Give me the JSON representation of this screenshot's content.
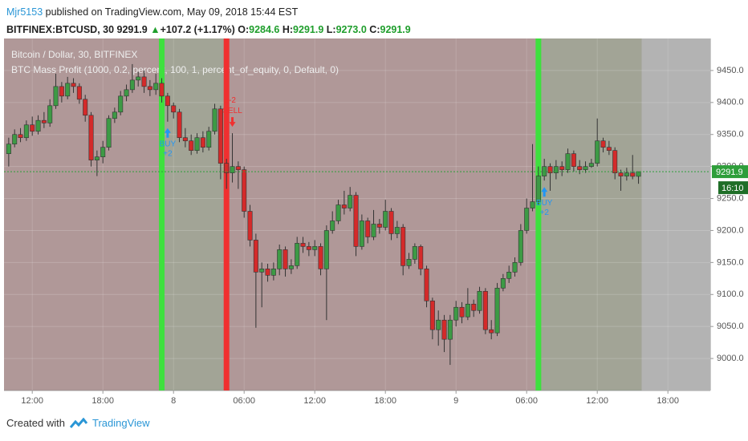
{
  "header": {
    "author": "Mjr5153",
    "published": "published on TradingView.com, May 09, 2018 15:44 EST",
    "symbol": "BITFINEX:BTCUSD, 30",
    "last": "9291.9",
    "arrow": "▲",
    "change": "+107.2 (+1.17%)",
    "o_label": "O:",
    "open": "9284.6",
    "h_label": "H:",
    "high": "9291.9",
    "l_label": "L:",
    "low": "9273.0",
    "c_label": "C:",
    "close": "9291.9"
  },
  "chart_data": {
    "type": "candlestick",
    "title": "Bitcoin / Dollar, 30, BITFINEX",
    "subtitle": "BTC Mass Profit (1000, 0.2, percent, 100, 1, percent_of_equity, 0, Default, 0)",
    "x": [
      10,
      10.5,
      11,
      11.5,
      12,
      12.5,
      13,
      13.5,
      14,
      14.5,
      15,
      15.5,
      16,
      16.5,
      17,
      17.5,
      18,
      18.5,
      19,
      19.5,
      20,
      20.5,
      21,
      21.5,
      22,
      22.5,
      23,
      23.5,
      24,
      24.5,
      25,
      25.5,
      26,
      26.5,
      27,
      27.5,
      28,
      28.5,
      29,
      29.5,
      30,
      30.5,
      31,
      31.5,
      32,
      32.5,
      33,
      33.5,
      34,
      34.5,
      35,
      35.5,
      36,
      36.5,
      37,
      37.5,
      38,
      38.5,
      39,
      39.5,
      40,
      40.5,
      41,
      41.5,
      42,
      42.5,
      43,
      43.5,
      44,
      44.5,
      45,
      45.5,
      46,
      46.5,
      47,
      47.5,
      48,
      48.5,
      49,
      49.5,
      50,
      50.5,
      51,
      51.5,
      52,
      52.5,
      53,
      53.5,
      54,
      54.5,
      55,
      55.5,
      56,
      56.5,
      57,
      57.5,
      58,
      58.5,
      59,
      59.5,
      60,
      60.5,
      61,
      61.5,
      62,
      62.5,
      63,
      63.5
    ],
    "open": [
      9320,
      9335,
      9350,
      9345,
      9365,
      9355,
      9372,
      9368,
      9395,
      9425,
      9410,
      9430,
      9425,
      9405,
      9380,
      9310,
      9315,
      9330,
      9375,
      9385,
      9410,
      9420,
      9435,
      9440,
      9425,
      9420,
      9430,
      9410,
      9395,
      9385,
      9345,
      9340,
      9325,
      9345,
      9330,
      9355,
      9390,
      9305,
      9290,
      9300,
      9295,
      9230,
      9185,
      9135,
      9140,
      9130,
      9140,
      9170,
      9140,
      9145,
      9180,
      9175,
      9170,
      9175,
      9140,
      9200,
      9215,
      9240,
      9235,
      9255,
      9175,
      9215,
      9190,
      9210,
      9205,
      9230,
      9195,
      9205,
      9145,
      9155,
      9175,
      9140,
      9090,
      9045,
      9060,
      9030,
      9060,
      9080,
      9065,
      9085,
      9075,
      9105,
      9045,
      9040,
      9110,
      9125,
      9135,
      9150,
      9200,
      9235,
      9245,
      9285,
      9300,
      9290,
      9300,
      9295,
      9320,
      9300,
      9295,
      9300,
      9305,
      9340,
      9330,
      9325,
      9290,
      9285,
      9290,
      9284.6
    ],
    "high": [
      9345,
      9358,
      9360,
      9372,
      9378,
      9380,
      9385,
      9405,
      9445,
      9432,
      9440,
      9438,
      9430,
      9412,
      9385,
      9325,
      9340,
      9380,
      9392,
      9418,
      9428,
      9460,
      9448,
      9450,
      9435,
      9445,
      9438,
      9415,
      9400,
      9390,
      9360,
      9350,
      9352,
      9355,
      9362,
      9398,
      9395,
      9312,
      9352,
      9308,
      9300,
      9240,
      9195,
      9150,
      9148,
      9150,
      9178,
      9175,
      9155,
      9190,
      9190,
      9182,
      9185,
      9180,
      9208,
      9230,
      9248,
      9262,
      9268,
      9260,
      9225,
      9220,
      9232,
      9218,
      9248,
      9235,
      9215,
      9210,
      9165,
      9180,
      9178,
      9145,
      9095,
      9075,
      9068,
      9068,
      9090,
      9088,
      9110,
      9092,
      9112,
      9110,
      9060,
      9118,
      9132,
      9145,
      9158,
      9210,
      9250,
      9335,
      9300,
      9312,
      9305,
      9310,
      9308,
      9328,
      9325,
      9310,
      9308,
      9312,
      9375,
      9345,
      9340,
      9330,
      9295,
      9298,
      9318,
      9291.9
    ],
    "low": [
      9300,
      9330,
      9338,
      9340,
      9348,
      9350,
      9360,
      9362,
      9390,
      9400,
      9405,
      9415,
      9398,
      9370,
      9300,
      9285,
      9305,
      9325,
      9368,
      9380,
      9402,
      9415,
      9425,
      9415,
      9410,
      9412,
      9400,
      9370,
      9375,
      9338,
      9330,
      9318,
      9320,
      9322,
      9325,
      9350,
      9280,
      9265,
      9275,
      9265,
      9220,
      9175,
      9048,
      9080,
      9120,
      9122,
      9130,
      9128,
      9132,
      9140,
      9165,
      9160,
      9160,
      9130,
      9060,
      9195,
      9210,
      9225,
      9230,
      9160,
      9170,
      9180,
      9185,
      9195,
      9200,
      9185,
      9188,
      9130,
      9140,
      9148,
      9130,
      9080,
      9030,
      9020,
      9010,
      8990,
      9050,
      9055,
      9060,
      9065,
      9070,
      9038,
      9030,
      9035,
      9105,
      9118,
      9128,
      9145,
      9195,
      9230,
      9240,
      9278,
      9262,
      9280,
      9285,
      9290,
      9292,
      9288,
      9290,
      9298,
      9300,
      9322,
      9318,
      9280,
      9262,
      9278,
      9280,
      9273
    ],
    "close": [
      9335,
      9350,
      9345,
      9365,
      9355,
      9372,
      9368,
      9395,
      9425,
      9410,
      9430,
      9425,
      9405,
      9380,
      9310,
      9315,
      9330,
      9375,
      9385,
      9410,
      9420,
      9435,
      9440,
      9425,
      9420,
      9430,
      9410,
      9395,
      9385,
      9345,
      9340,
      9325,
      9345,
      9330,
      9355,
      9390,
      9305,
      9290,
      9300,
      9295,
      9230,
      9185,
      9135,
      9140,
      9130,
      9140,
      9170,
      9140,
      9145,
      9180,
      9175,
      9170,
      9175,
      9140,
      9200,
      9215,
      9240,
      9235,
      9255,
      9175,
      9215,
      9190,
      9210,
      9205,
      9230,
      9195,
      9205,
      9145,
      9155,
      9175,
      9140,
      9090,
      9045,
      9060,
      9030,
      9060,
      9080,
      9065,
      9085,
      9075,
      9105,
      9045,
      9040,
      9110,
      9125,
      9135,
      9150,
      9200,
      9235,
      9245,
      9285,
      9300,
      9290,
      9300,
      9295,
      9320,
      9300,
      9295,
      9300,
      9305,
      9340,
      9330,
      9325,
      9290,
      9285,
      9290,
      9284.6,
      9291.9
    ],
    "up_color": "#3d9a45",
    "down_color": "#d42a2a",
    "xlim": [
      9.6,
      69.6
    ],
    "xticks": [
      {
        "value": 12,
        "label": "12:00"
      },
      {
        "value": 18,
        "label": "18:00"
      },
      {
        "value": 24,
        "label": "8"
      },
      {
        "value": 30,
        "label": "06:00"
      },
      {
        "value": 36,
        "label": "12:00"
      },
      {
        "value": 42,
        "label": "18:00"
      },
      {
        "value": 48,
        "label": "9"
      },
      {
        "value": 54,
        "label": "06:00"
      },
      {
        "value": 60,
        "label": "12:00"
      },
      {
        "value": 66,
        "label": "18:00"
      }
    ],
    "ylim": [
      8950,
      9500
    ],
    "yticks": [
      {
        "value": 9000,
        "label": "9000.0"
      },
      {
        "value": 9050,
        "label": "9050.0"
      },
      {
        "value": 9100,
        "label": "9100.0"
      },
      {
        "value": 9150,
        "label": "9150.0"
      },
      {
        "value": 9200,
        "label": "9200.0"
      },
      {
        "value": 9250,
        "label": "9250.0"
      },
      {
        "value": 9300,
        "label": "9300.0"
      },
      {
        "value": 9350,
        "label": "9350.0"
      },
      {
        "value": 9400,
        "label": "9400.0"
      },
      {
        "value": 9450,
        "label": "9450.0"
      }
    ],
    "grid": true,
    "countdown": "16:10",
    "signals": [
      {
        "x": 23,
        "label": "BUY",
        "qty": "+2",
        "color": "#2196f3",
        "bar_color": "#3ee03e"
      },
      {
        "x": 28.5,
        "label": "SELL",
        "qty": "-2",
        "color": "#f03030",
        "bar_color": "#f03030"
      },
      {
        "x": 55,
        "label": "BUY",
        "qty": "+2",
        "color": "#2196f3",
        "bar_color": "#3ee03e"
      }
    ]
  },
  "footer": {
    "created": "Created with",
    "brand": "TradingView"
  }
}
